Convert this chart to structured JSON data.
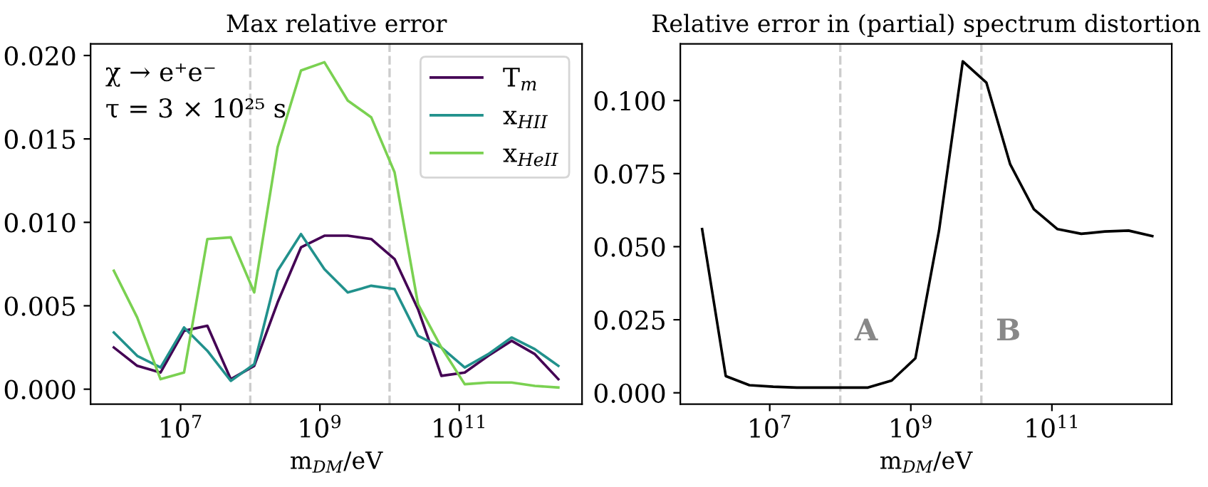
{
  "chart_data": [
    {
      "type": "line",
      "title": "Max relative error",
      "xlabel": "m$_{DM}$/eV",
      "log": "x",
      "grid": false,
      "legend": "top right",
      "x": [
        1100000.0,
        2380000.0,
        5150000.0,
        11200000.0,
        24200000.0,
        52500000.0,
        114000000.0,
        247000000.0,
        535000000.0,
        1160000000.0,
        2510000000.0,
        5450000000.0,
        11800000000.0,
        25600000000.0,
        55500000000.0,
        120000000000.0,
        261000000000.0,
        565000000000.0,
        1220000000000.0,
        2650000000000.0
      ],
      "series": [
        {
          "name": "T$_{m}$",
          "color": "#440154",
          "values": [
            0.0025,
            0.0014,
            0.001,
            0.0035,
            0.0038,
            0.0006,
            0.0014,
            0.0052,
            0.0085,
            0.0092,
            0.0092,
            0.009,
            0.0078,
            0.0048,
            0.0008,
            0.001,
            0.002,
            0.0029,
            0.0021,
            0.0006
          ]
        },
        {
          "name": "x$_{HII}$",
          "color": "#21918c",
          "values": [
            0.0034,
            0.002,
            0.0013,
            0.0037,
            0.0023,
            0.0005,
            0.0015,
            0.0071,
            0.0093,
            0.0072,
            0.0058,
            0.0062,
            0.006,
            0.0032,
            0.0025,
            0.0013,
            0.0021,
            0.0031,
            0.0024,
            0.0014
          ]
        },
        {
          "name": "x$_{HeII}$",
          "color": "#7ad151",
          "values": [
            0.0071,
            0.0043,
            0.0006,
            0.001,
            0.009,
            0.0091,
            0.0058,
            0.0145,
            0.0191,
            0.0196,
            0.0173,
            0.0163,
            0.013,
            0.0051,
            0.0025,
            0.0003,
            0.0004,
            0.0004,
            0.0002,
            0.0001
          ]
        }
      ],
      "xlim": [
        510000.0,
        5800000000000.0
      ],
      "ylim": [
        -0.0009,
        0.0207
      ],
      "xticks": [
        {
          "value": 10000000.0,
          "label": "10$^{7}$"
        },
        {
          "value": 1000000000.0,
          "label": "10$^{9}$"
        },
        {
          "value": 100000000000.0,
          "label": "10$^{11}$"
        }
      ],
      "yticks": [
        {
          "value": 0,
          "label": "0.000"
        },
        {
          "value": 0.005,
          "label": "0.005"
        },
        {
          "value": 0.01,
          "label": "0.010"
        },
        {
          "value": 0.015,
          "label": "0.015"
        },
        {
          "value": 0.02,
          "label": "0.020"
        }
      ],
      "ref_lines": [
        {
          "axis": "x",
          "value": 100000000.0,
          "color": "#cccccc",
          "line_style": "dashed"
        },
        {
          "axis": "x",
          "value": 10000000000.0,
          "color": "#cccccc",
          "line_style": "dashed"
        }
      ],
      "annotations": [
        "χ → e⁺e⁻",
        "τ = 3 × 10²⁵ s"
      ]
    },
    {
      "type": "line",
      "title": "Relative error in (partial) spectrum distortion",
      "xlabel": "m$_{DM}$/eV",
      "log": "x",
      "grid": false,
      "x": [
        1100000.0,
        2380000.0,
        5150000.0,
        11200000.0,
        24200000.0,
        52500000.0,
        114000000.0,
        247000000.0,
        535000000.0,
        1160000000.0,
        2510000000.0,
        5450000000.0,
        11800000000.0,
        25600000000.0,
        55500000000.0,
        120000000000.0,
        261000000000.0,
        565000000000.0,
        1220000000000.0,
        2650000000000.0
      ],
      "series": [
        {
          "color": "#000000",
          "values": [
            0.056,
            0.0057,
            0.0026,
            0.0021,
            0.0018,
            0.0018,
            0.0018,
            0.0018,
            0.0042,
            0.0118,
            0.0555,
            0.1134,
            0.1061,
            0.0782,
            0.0628,
            0.056,
            0.0544,
            0.0552,
            0.0555,
            0.0536
          ]
        }
      ],
      "xlim": [
        540000.0,
        5000000000000.0
      ],
      "ylim": [
        -0.0039,
        0.1194
      ],
      "xticks": [
        {
          "value": 10000000.0,
          "label": "10$^{7}$"
        },
        {
          "value": 1000000000.0,
          "label": "10$^{9}$"
        },
        {
          "value": 100000000000.0,
          "label": "10$^{11}$"
        }
      ],
      "yticks": [
        {
          "value": 0,
          "label": "0.000"
        },
        {
          "value": 0.025,
          "label": "0.025"
        },
        {
          "value": 0.05,
          "label": "0.050"
        },
        {
          "value": 0.075,
          "label": "0.075"
        },
        {
          "value": 0.1,
          "label": "0.100"
        }
      ],
      "ref_lines": [
        {
          "axis": "x",
          "value": 100000000.0,
          "label": "A",
          "color": "#cccccc",
          "line_style": "dashed"
        },
        {
          "axis": "x",
          "value": 10000000000.0,
          "label": "B",
          "color": "#cccccc",
          "line_style": "dashed"
        }
      ]
    }
  ]
}
